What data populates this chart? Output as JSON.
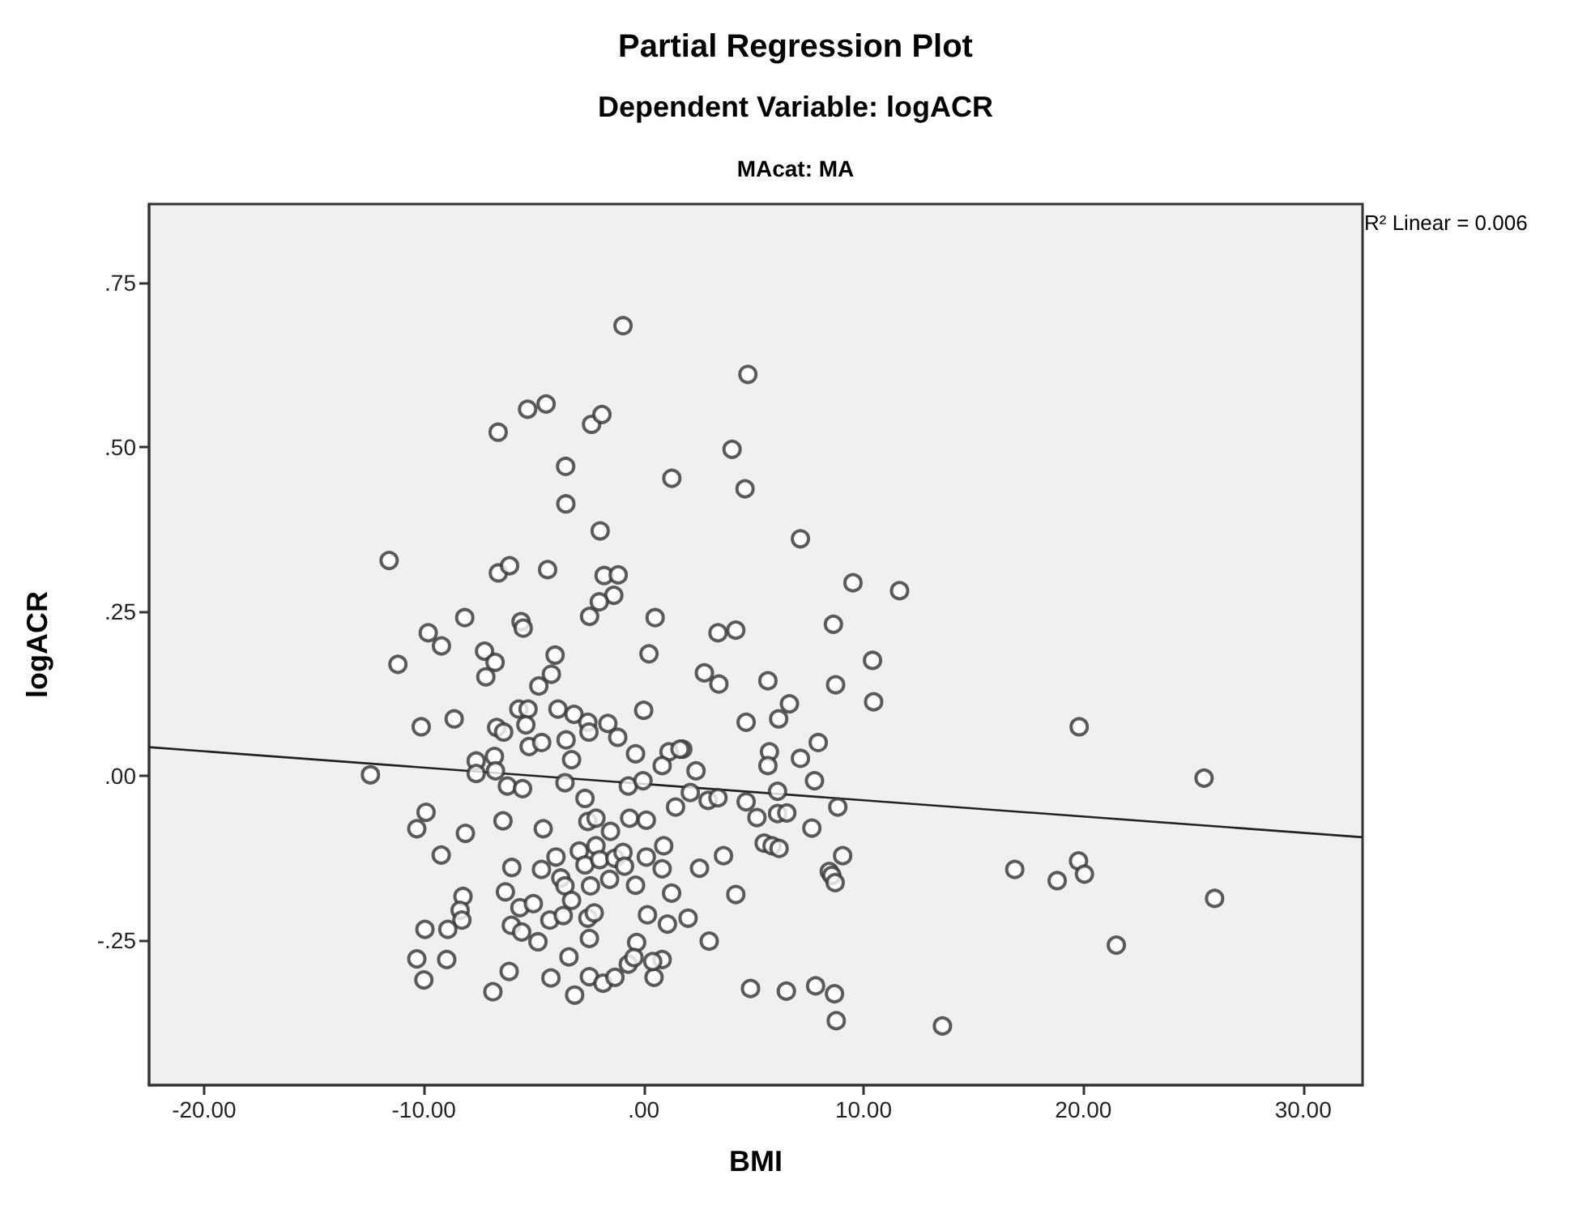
{
  "chart_data": {
    "type": "scatter",
    "title": "Partial Regression Plot",
    "subtitle": "Dependent Variable: logACR",
    "xlabel": "BMI",
    "ylabel": "logACR",
    "annotations": [
      "MAcat: MA",
      "R² Linear = 0.006"
    ],
    "xlim": [
      -22.5,
      32.7
    ],
    "ylim": [
      -0.47,
      0.87
    ],
    "xticks": [
      {
        "value": -20,
        "label": "-20.00"
      },
      {
        "value": -10,
        "label": "-10.00"
      },
      {
        "value": 0,
        "label": ".00"
      },
      {
        "value": 10,
        "label": "10.00"
      },
      {
        "value": 20,
        "label": "20.00"
      },
      {
        "value": 30,
        "label": "30.00"
      }
    ],
    "yticks": [
      {
        "value": -0.25,
        "label": "-.25"
      },
      {
        "value": 0,
        "label": ".00"
      },
      {
        "value": 0.25,
        "label": ".25"
      },
      {
        "value": 0.5,
        "label": ".50"
      },
      {
        "value": 0.75,
        "label": ".75"
      }
    ],
    "grid": false,
    "marker": "circle",
    "series": [
      {
        "color": "#333333",
        "x": [
          -0.94,
          -5.28,
          -4.44,
          -6.62,
          -2.37,
          -1.9,
          -3.55,
          1.28,
          -3.54,
          -1.98,
          -11.58,
          -6.61,
          -6.1,
          -4.37,
          -1.8,
          -1.16,
          -1.36,
          -2.02,
          -2.46,
          0.52,
          -8.14,
          -9.8,
          -9.2,
          -11.18,
          -5.58,
          -5.48,
          -7.24,
          -6.76,
          -7.18,
          -4.03,
          -4.2,
          -4.77,
          0.24,
          4.74,
          4.02,
          4.61,
          7.13,
          9.52,
          11.64,
          3.38,
          4.19,
          8.63,
          10.41,
          2.76,
          3.42,
          5.65,
          8.73,
          10.46,
          6.63,
          4.66,
          6.14,
          7.94,
          5.72,
          5.65,
          7.13,
          1.78,
          2.38,
          7.77,
          2.12,
          2.93,
          3.38,
          4.66,
          6.09,
          5.15,
          6.09,
          6.51,
          8.83,
          7.65,
          3.63,
          2.54,
          5.48,
          5.84,
          6.16,
          9.05,
          8.44,
          8.56,
          8.71,
          4.19,
          2.02,
          2.98,
          4.86,
          6.49,
          7.82,
          8.68,
          8.76,
          13.59,
          -12.43,
          -10.12,
          -8.62,
          -5.68,
          -5.26,
          -3.9,
          -3.17,
          0.0,
          -6.69,
          -6.37,
          -5.36,
          -2.54,
          -2.49,
          -1.63,
          -1.18,
          -5.21,
          -4.64,
          -3.53,
          -3.28,
          -0.37,
          1.15,
          1.65,
          0.84,
          -7.62,
          -6.79,
          -7.62,
          -6.74,
          -6.2,
          -5.51,
          -3.58,
          -0.7,
          -0.03,
          1.45,
          -2.67,
          -2.54,
          -2.17,
          -0.64,
          0.12,
          -1.51,
          -9.9,
          -10.32,
          -8.11,
          -6.4,
          -4.57,
          -9.21,
          -6.0,
          -4.65,
          -3.99,
          -2.93,
          -2.67,
          -2.17,
          -2.0,
          -1.31,
          -0.94,
          -0.87,
          0.12,
          0.91,
          0.84,
          -3.77,
          -3.58,
          -2.42,
          -1.55,
          -0.37,
          -6.29,
          -8.22,
          -8.35,
          -8.27,
          -9.95,
          -8.91,
          -5.63,
          -5.02,
          -3.28,
          -4.27,
          -6.02,
          -5.55,
          -3.66,
          -2.54,
          -2.25,
          -4.81,
          -2.47,
          0.17,
          1.08,
          1.27,
          -0.32,
          -10.32,
          -8.96,
          -10.0,
          -6.12,
          -6.86,
          -3.4,
          -4.22,
          -3.14,
          -2.47,
          -1.85,
          -1.31,
          -0.7,
          -0.44,
          0.47,
          0.84,
          0.41,
          19.81,
          25.49,
          16.88,
          19.78,
          20.05,
          18.81,
          25.97,
          21.5
        ],
        "values": [
          0.685,
          0.558,
          0.566,
          0.523,
          0.535,
          0.55,
          0.471,
          0.453,
          0.414,
          0.373,
          0.328,
          0.309,
          0.32,
          0.314,
          0.305,
          0.306,
          0.275,
          0.265,
          0.243,
          0.241,
          0.241,
          0.218,
          0.198,
          0.17,
          0.235,
          0.225,
          0.19,
          0.173,
          0.151,
          0.184,
          0.155,
          0.137,
          0.186,
          0.611,
          0.497,
          0.437,
          0.361,
          0.294,
          0.282,
          0.218,
          0.222,
          0.231,
          0.176,
          0.157,
          0.14,
          0.145,
          0.139,
          0.113,
          0.11,
          0.082,
          0.087,
          0.051,
          0.037,
          0.016,
          0.027,
          0.041,
          0.008,
          -0.007,
          -0.025,
          -0.037,
          -0.033,
          -0.039,
          -0.023,
          -0.063,
          -0.057,
          -0.056,
          -0.047,
          -0.079,
          -0.121,
          -0.14,
          -0.102,
          -0.106,
          -0.11,
          -0.121,
          -0.145,
          -0.151,
          -0.162,
          -0.18,
          -0.216,
          -0.251,
          -0.323,
          -0.327,
          -0.319,
          -0.331,
          -0.372,
          -0.38,
          0.002,
          0.075,
          0.087,
          0.102,
          0.102,
          0.102,
          0.094,
          0.1,
          0.074,
          0.067,
          0.078,
          0.082,
          0.067,
          0.08,
          0.059,
          0.045,
          0.051,
          0.055,
          0.025,
          0.034,
          0.037,
          0.041,
          0.016,
          0.023,
          0.03,
          0.004,
          0.008,
          -0.015,
          -0.019,
          -0.01,
          -0.015,
          -0.007,
          -0.047,
          -0.034,
          -0.069,
          -0.064,
          -0.064,
          -0.067,
          -0.084,
          -0.055,
          -0.08,
          -0.087,
          -0.068,
          -0.08,
          -0.12,
          -0.139,
          -0.142,
          -0.123,
          -0.114,
          -0.135,
          -0.106,
          -0.127,
          -0.125,
          -0.116,
          -0.137,
          -0.123,
          -0.106,
          -0.141,
          -0.155,
          -0.167,
          -0.167,
          -0.157,
          -0.166,
          -0.176,
          -0.183,
          -0.204,
          -0.219,
          -0.233,
          -0.233,
          -0.2,
          -0.194,
          -0.189,
          -0.219,
          -0.227,
          -0.237,
          -0.212,
          -0.216,
          -0.208,
          -0.252,
          -0.247,
          -0.211,
          -0.225,
          -0.178,
          -0.253,
          -0.278,
          -0.279,
          -0.31,
          -0.297,
          -0.328,
          -0.275,
          -0.307,
          -0.333,
          -0.305,
          -0.315,
          -0.306,
          -0.286,
          -0.276,
          -0.306,
          -0.279,
          -0.282,
          0.075,
          -0.003,
          -0.142,
          -0.129,
          -0.149,
          -0.159,
          -0.186,
          -0.257
        ]
      },
      {
        "type": "line",
        "color": "#222222",
        "marker": "none",
        "x": [
          -22.5,
          32.7
        ],
        "values": [
          0.044,
          -0.093
        ]
      }
    ]
  }
}
